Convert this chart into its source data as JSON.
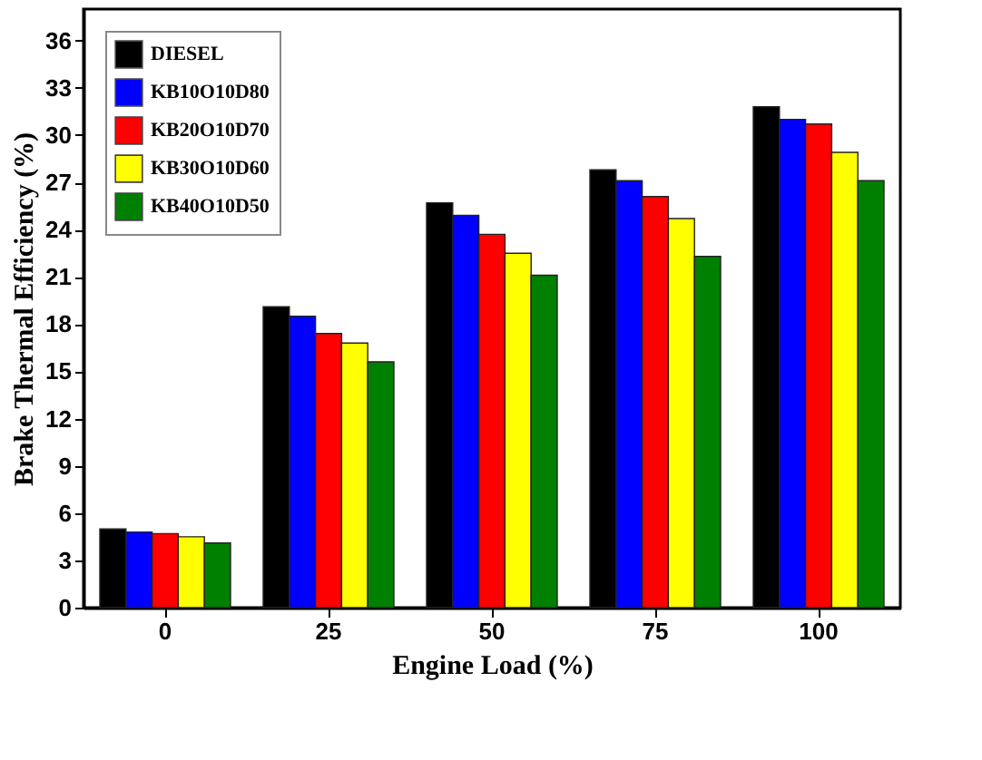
{
  "chart_data": {
    "type": "bar",
    "xlabel": "Engine Load (%)",
    "ylabel": "Brake Thermal Efficiency (%)",
    "categories": [
      "0",
      "25",
      "50",
      "75",
      "100"
    ],
    "series": [
      {
        "name": "DIESEL",
        "color": "#000000",
        "values": [
          5.0,
          19.1,
          25.7,
          27.8,
          31.8
        ]
      },
      {
        "name": "KB10O10D80",
        "color": "#0000ff",
        "values": [
          4.8,
          18.5,
          24.9,
          27.1,
          31.0
        ]
      },
      {
        "name": "KB20O10D70",
        "color": "#ff0000",
        "values": [
          4.7,
          17.4,
          23.7,
          26.1,
          30.7
        ]
      },
      {
        "name": "KB30O10D60",
        "color": "#ffff00",
        "values": [
          4.5,
          16.8,
          22.5,
          24.7,
          28.9
        ]
      },
      {
        "name": "KB40O10D50",
        "color": "#008000",
        "values": [
          4.1,
          15.6,
          21.1,
          22.3,
          27.1
        ]
      }
    ],
    "ylim": [
      0,
      38
    ],
    "yticks": [
      0,
      3,
      6,
      9,
      12,
      15,
      18,
      21,
      24,
      27,
      30,
      33,
      36
    ],
    "grid": false,
    "legend": "top left"
  }
}
